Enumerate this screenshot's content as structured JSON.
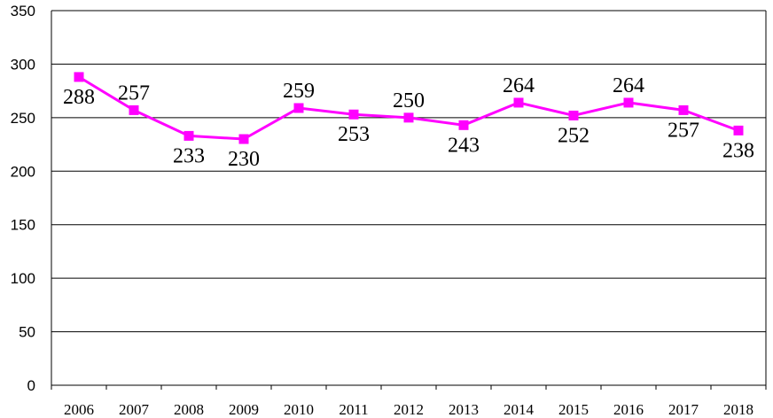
{
  "chart_data": {
    "type": "line",
    "title": "",
    "xlabel": "",
    "ylabel": "",
    "categories": [
      "2006",
      "2007",
      "2008",
      "2009",
      "2010",
      "2011",
      "2012",
      "2013",
      "2014",
      "2015",
      "2016",
      "2017",
      "2018"
    ],
    "series": [
      {
        "values": [
          288,
          257,
          233,
          230,
          259,
          253,
          250,
          243,
          264,
          252,
          264,
          257,
          238
        ],
        "color": "#ff00ff"
      }
    ],
    "data_labels": [
      "288",
      "257",
      "233",
      "230",
      "259",
      "253",
      "250",
      "243",
      "264",
      "252",
      "264",
      "257",
      "238"
    ],
    "ylim": [
      0,
      350
    ],
    "yticks": [
      0,
      50,
      100,
      150,
      200,
      250,
      300,
      350
    ],
    "ytick_labels": [
      "0",
      "50",
      "100",
      "150",
      "200",
      "250",
      "300",
      "350"
    ],
    "grid": true,
    "legend": "none",
    "marker": "square"
  }
}
